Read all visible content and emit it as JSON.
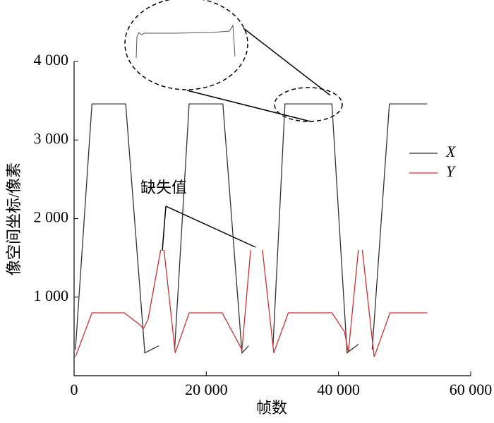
{
  "chart_data": {
    "type": "line",
    "x_label": "帧数",
    "y_label": "像空间坐标/像素",
    "annotation": "缺失值",
    "xlim": [
      0,
      60000
    ],
    "xticks": [
      0,
      {
        "value": 20000,
        "label": "20 000"
      },
      {
        "value": 40000,
        "label": "40 000"
      },
      {
        "value": 60000,
        "label": "60 000"
      }
    ],
    "ylim": [
      0,
      4000
    ],
    "yticks": [
      {
        "value": 1000,
        "label": "1 000"
      },
      {
        "value": 2000,
        "label": "2 000"
      },
      {
        "value": 3000,
        "label": "3 000"
      },
      {
        "value": 4000,
        "label": "4 000"
      }
    ],
    "grid": false,
    "legend": "right",
    "series": [
      {
        "name": "X",
        "color": "#333333",
        "x": [
          200,
          2700,
          7800,
          10700,
          12800,
          14000,
          15200,
          17400,
          22500,
          25400,
          26400,
          28000,
          30100,
          31900,
          39000,
          41300,
          43000,
          44500,
          45100,
          47700,
          53400
        ],
        "values": [
          330,
          3460,
          3460,
          290,
          380,
          null,
          330,
          3460,
          3460,
          290,
          380,
          null,
          380,
          3460,
          3460,
          290,
          400,
          null,
          330,
          3460,
          3460
        ]
      },
      {
        "name": "Y",
        "color": "#d03030",
        "x": [
          200,
          2700,
          7600,
          9900,
          10500,
          11200,
          13100,
          13300,
          13600,
          15300,
          17400,
          22400,
          25400,
          26700,
          27500,
          28500,
          30200,
          32400,
          39000,
          40900,
          41500,
          43000,
          43300,
          43600,
          45400,
          47800,
          53400
        ],
        "values": [
          240,
          800,
          800,
          650,
          600,
          720,
          1600,
          null,
          1600,
          290,
          800,
          800,
          330,
          1600,
          null,
          1600,
          290,
          800,
          800,
          560,
          300,
          1600,
          null,
          1600,
          240,
          800,
          800
        ]
      }
    ]
  }
}
